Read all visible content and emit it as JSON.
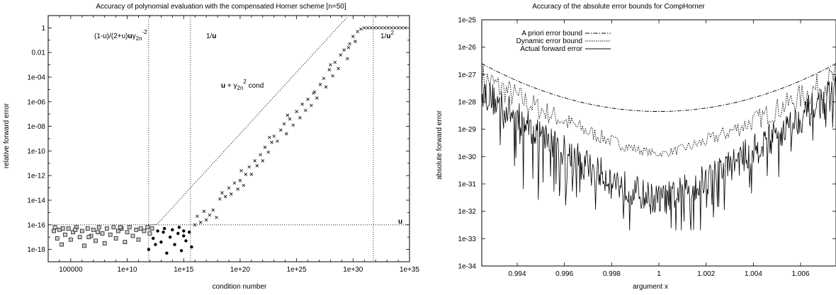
{
  "chart_data": [
    {
      "type": "scatter",
      "title": "Accuracy of polynomial evaluation with the compensated Horner scheme [n=50]",
      "xlabel": "condition number",
      "ylabel": "relative forward error",
      "xscale": "log",
      "yscale": "log",
      "xlim_exp": [
        3,
        35
      ],
      "ylim_exp": [
        -19,
        1
      ],
      "xtick_labels": [
        "100000",
        "1e+10",
        "1e+15",
        "1e+20",
        "1e+25",
        "1e+30",
        "1e+35"
      ],
      "ytick_labels": [
        "1",
        "0.01",
        "1e-04",
        "1e-06",
        "1e-08",
        "1e-10",
        "1e-12",
        "1e-14",
        "1e-16",
        "1e-18"
      ],
      "annotations": {
        "bound1_prefix": "(1-u)/(2+u)",
        "bound1_u": "u",
        "bound1_gamma": "γ",
        "bound1_sub": "2n",
        "bound1_sup": "-2",
        "inv_u_prefix": "1/",
        "inv_u_u": "u",
        "inv_u2_prefix": "1/",
        "inv_u2_u": "u",
        "inv_u2_sup": "2",
        "bound_curve_u": "u",
        "bound_curve_plus": " + γ",
        "bound_curve_sub": "2n",
        "bound_curve_sup": "2",
        "bound_curve_cond": " cond",
        "u_label": "u"
      },
      "reference_lines": {
        "vertical_x_exp": [
          11.9,
          15.6,
          31.8
        ],
        "horizontal_y_exp": -16
      },
      "series": [
        {
          "marker": "square",
          "points": [
            [
              3.5,
              -16.5
            ],
            [
              3.8,
              -17.1
            ],
            [
              4.0,
              -16.4
            ],
            [
              4.2,
              -17.6
            ],
            [
              4.5,
              -16.8
            ],
            [
              4.8,
              -16.3
            ],
            [
              5.0,
              -17.2
            ],
            [
              5.2,
              -16.6
            ],
            [
              5.5,
              -16.2
            ],
            [
              5.8,
              -17.0
            ],
            [
              6.0,
              -16.5
            ],
            [
              6.2,
              -17.7
            ],
            [
              6.5,
              -16.3
            ],
            [
              6.8,
              -16.9
            ],
            [
              7.0,
              -16.4
            ],
            [
              7.2,
              -17.3
            ],
            [
              7.5,
              -16.2
            ],
            [
              7.8,
              -16.7
            ],
            [
              8.0,
              -17.5
            ],
            [
              8.2,
              -16.3
            ],
            [
              8.5,
              -16.8
            ],
            [
              8.8,
              -16.2
            ],
            [
              9.0,
              -17.1
            ],
            [
              9.2,
              -16.5
            ],
            [
              9.5,
              -16.3
            ],
            [
              9.8,
              -17.4
            ],
            [
              10.0,
              -16.6
            ],
            [
              10.2,
              -16.2
            ],
            [
              10.5,
              -16.9
            ],
            [
              10.8,
              -16.4
            ],
            [
              11.0,
              -17.2
            ],
            [
              11.2,
              -16.3
            ],
            [
              11.5,
              -16.5
            ],
            [
              11.8,
              -16.2
            ],
            [
              12.0,
              -16.7
            ],
            [
              12.2,
              -16.3
            ],
            [
              3.6,
              -16.2
            ],
            [
              5.4,
              -16.4
            ],
            [
              7.4,
              -16.6
            ],
            [
              9.4,
              -16.2
            ],
            [
              6.6,
              -17.0
            ],
            [
              4.3,
              -16.3
            ]
          ]
        },
        {
          "marker": "circle",
          "points": [
            [
              11.9,
              -18.0
            ],
            [
              12.3,
              -17.1
            ],
            [
              12.7,
              -16.5
            ],
            [
              13.0,
              -17.4
            ],
            [
              13.2,
              -16.6
            ],
            [
              13.5,
              -18.3
            ],
            [
              13.8,
              -17.0
            ],
            [
              14.0,
              -16.4
            ],
            [
              14.2,
              -17.6
            ],
            [
              14.5,
              -16.7
            ],
            [
              14.8,
              -18.1
            ],
            [
              15.0,
              -16.5
            ],
            [
              15.2,
              -17.3
            ],
            [
              15.5,
              -16.6
            ],
            [
              15.7,
              -17.8
            ],
            [
              13.3,
              -16.3
            ],
            [
              14.6,
              -16.2
            ],
            [
              12.5,
              -17.6
            ],
            [
              15.0,
              -16.9
            ]
          ]
        },
        {
          "marker": "cross",
          "points": [
            [
              16.0,
              -16.0
            ],
            [
              16.2,
              -15.3
            ],
            [
              16.5,
              -15.8
            ],
            [
              16.8,
              -14.9
            ],
            [
              17.0,
              -15.6
            ],
            [
              17.3,
              -15.2
            ],
            [
              17.6,
              -14.8
            ],
            [
              17.9,
              -15.4
            ],
            [
              18.2,
              -13.9
            ],
            [
              18.4,
              -13.4
            ],
            [
              18.7,
              -13.7
            ],
            [
              19.0,
              -13.0
            ],
            [
              19.2,
              -13.5
            ],
            [
              19.5,
              -12.6
            ],
            [
              19.8,
              -13.1
            ],
            [
              20.0,
              -12.4
            ],
            [
              20.3,
              -12.8
            ],
            [
              20.5,
              -11.9
            ],
            [
              20.8,
              -11.3
            ],
            [
              21.0,
              -11.9
            ],
            [
              21.3,
              -10.8
            ],
            [
              21.5,
              -11.2
            ],
            [
              21.8,
              -10.3
            ],
            [
              22.0,
              -10.8
            ],
            [
              22.2,
              -9.7
            ],
            [
              22.5,
              -10.1
            ],
            [
              22.8,
              -9.3
            ],
            [
              23.0,
              -8.8
            ],
            [
              23.3,
              -9.2
            ],
            [
              23.6,
              -8.3
            ],
            [
              23.9,
              -7.8
            ],
            [
              24.1,
              -8.6
            ],
            [
              24.4,
              -7.4
            ],
            [
              24.7,
              -7.9
            ],
            [
              25.0,
              -6.8
            ],
            [
              25.3,
              -7.3
            ],
            [
              25.5,
              -6.2
            ],
            [
              25.8,
              -6.7
            ],
            [
              26.0,
              -5.8
            ],
            [
              26.3,
              -6.3
            ],
            [
              26.6,
              -5.2
            ],
            [
              26.8,
              -5.7
            ],
            [
              27.1,
              -4.6
            ],
            [
              27.4,
              -4.1
            ],
            [
              27.6,
              -4.8
            ],
            [
              27.9,
              -3.4
            ],
            [
              28.2,
              -3.9
            ],
            [
              28.4,
              -2.8
            ],
            [
              28.7,
              -3.3
            ],
            [
              28.9,
              -2.2
            ],
            [
              29.2,
              -1.8
            ],
            [
              29.5,
              -2.5
            ],
            [
              29.7,
              -1.3
            ],
            [
              30.0,
              -0.7
            ],
            [
              30.2,
              -1.1
            ],
            [
              30.4,
              -0.3
            ],
            [
              30.7,
              -0.1
            ],
            [
              31.0,
              0.0
            ],
            [
              31.3,
              0.0
            ],
            [
              31.6,
              0.0
            ],
            [
              31.9,
              0.0
            ],
            [
              32.2,
              0.0
            ],
            [
              32.5,
              0.0
            ],
            [
              32.8,
              0.0
            ],
            [
              33.1,
              0.0
            ],
            [
              33.4,
              0.0
            ],
            [
              33.7,
              0.0
            ],
            [
              34.0,
              0.0
            ],
            [
              34.3,
              0.0
            ],
            [
              34.6,
              0.0
            ],
            [
              20.1,
              -11.6
            ],
            [
              22.6,
              -8.9
            ],
            [
              24.2,
              -7.1
            ],
            [
              26.5,
              -5.3
            ],
            [
              28.0,
              -3.0
            ],
            [
              29.6,
              -1.6
            ]
          ]
        }
      ]
    },
    {
      "type": "line",
      "title": "Accuracy of the absolute error bounds for CompHorner",
      "xlabel": "argument x",
      "ylabel": "absolute forward error",
      "yscale": "log",
      "xlim": [
        0.9925,
        1.0075
      ],
      "ylim_exp": [
        -34,
        -25
      ],
      "xtick_labels": [
        "0.994",
        "0.996",
        "0.998",
        "1",
        "1.002",
        "1.004",
        "1.006"
      ],
      "ytick_labels": [
        "1e-25",
        "1e-26",
        "1e-27",
        "1e-28",
        "1e-29",
        "1e-30",
        "1e-31",
        "1e-32",
        "1e-33",
        "1e-34"
      ],
      "legend_position": "top-left",
      "series": [
        {
          "name": "A priori error bound",
          "style": "dash-dot",
          "model": {
            "type": "parabola",
            "center": 1.0,
            "min_log10": -28.35,
            "edge_x": 0.9925,
            "edge_log10": -26.6
          }
        },
        {
          "name": "Dynamic error bound",
          "style": "dotted",
          "model": {
            "type": "v",
            "center": 1.0,
            "min_log10": -29.9,
            "edge_log10": -27.1
          }
        },
        {
          "name": "Actual forward error",
          "style": "solid",
          "model": {
            "type": "v",
            "center": 1.0,
            "min_log10": -31.6,
            "edge_log10": -27.6,
            "noise": 0.9
          }
        }
      ]
    }
  ]
}
